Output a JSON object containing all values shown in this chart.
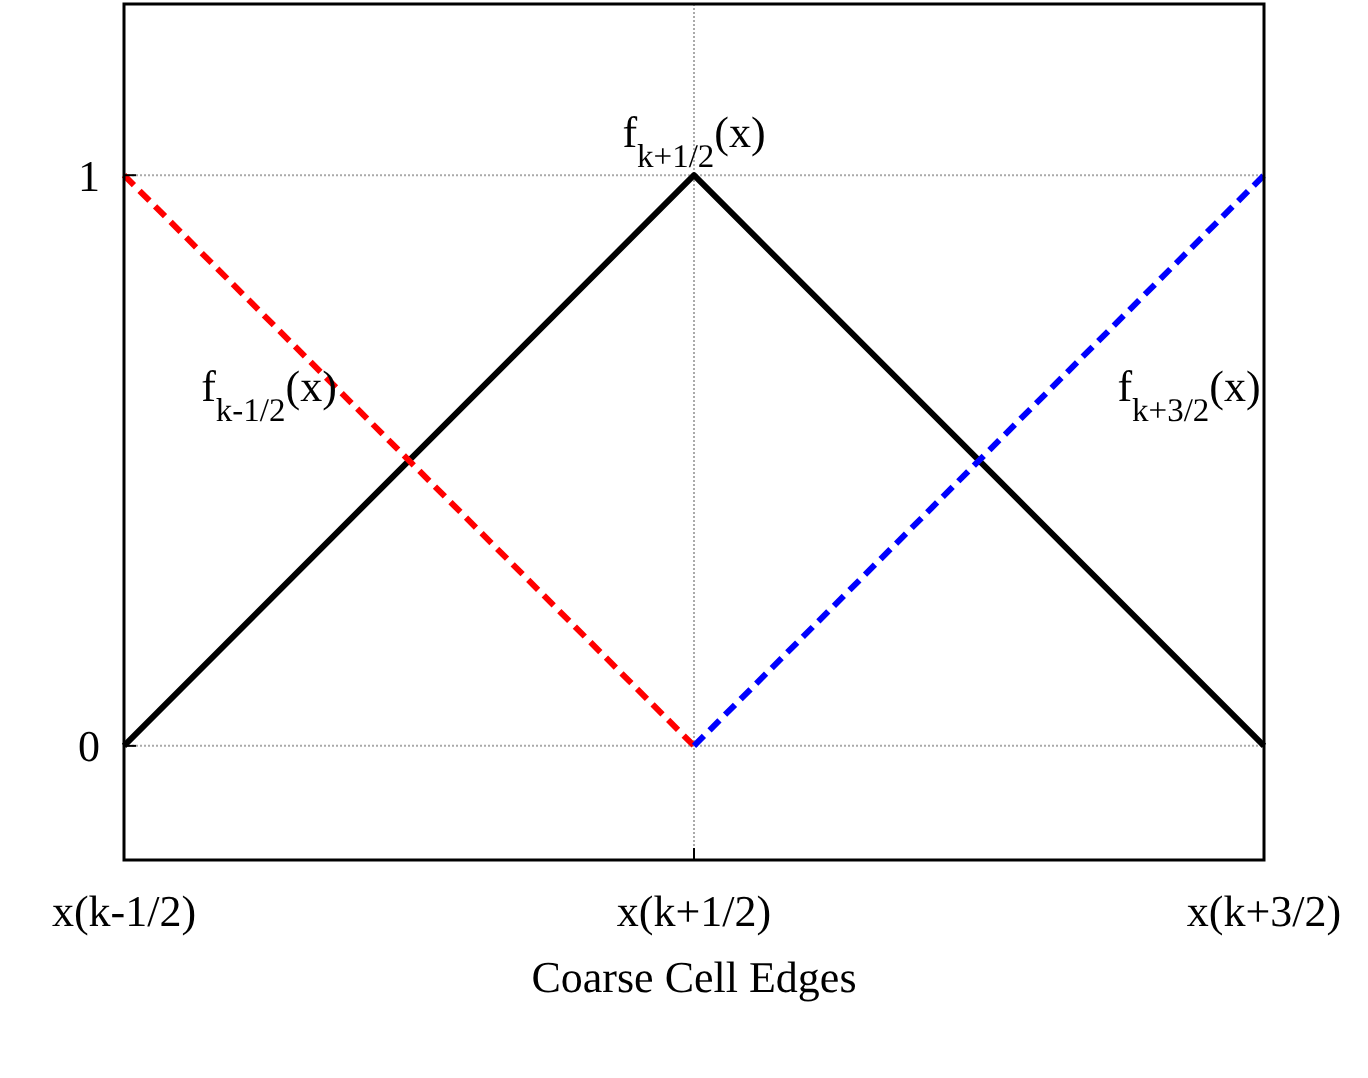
{
  "chart_data": {
    "type": "line",
    "xlabel": "Coarse Cell Edges",
    "categories": [
      "x(k-1/2)",
      "x(k+1/2)",
      "x(k+3/2)"
    ],
    "ylim": [
      -0.2,
      1.3
    ],
    "yticks": [
      0,
      1
    ],
    "grid": true,
    "marker": "none",
    "series": [
      {
        "name": "f$_{k+1/2}$(x)",
        "color": "#000000",
        "values": [
          0,
          1,
          0
        ],
        "line_style": "solid"
      },
      {
        "name": "f$_{k-1/2}$(x)",
        "color": "#ff0000",
        "values": [
          1,
          0,
          null
        ],
        "line_style": "dashed"
      },
      {
        "name": "f$_{k+3/2}$(x)",
        "color": "#0000ff",
        "values": [
          null,
          0,
          1
        ],
        "line_style": "dashed"
      }
    ]
  }
}
